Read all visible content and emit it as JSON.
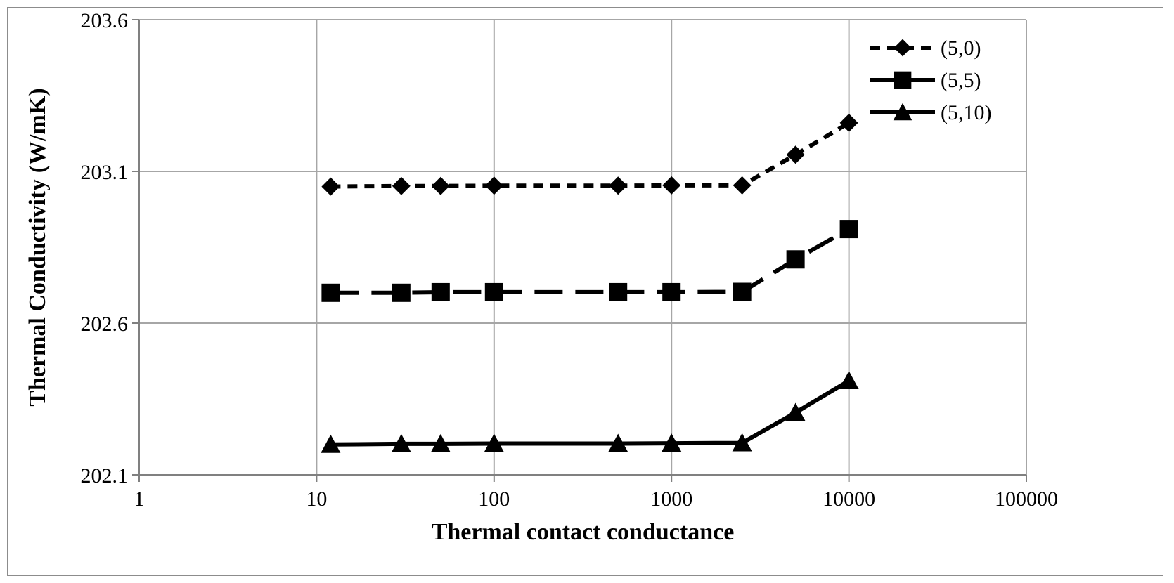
{
  "chart_data": {
    "type": "line",
    "title": "",
    "xlabel": "Thermal contact conductance",
    "ylabel": "Thermal Conductivity (W/mK)",
    "xscale": "log",
    "xlim": [
      1,
      100000
    ],
    "ylim": [
      202.1,
      203.6
    ],
    "xticks": [
      "1",
      "10",
      "100",
      "1000",
      "10000",
      "100000"
    ],
    "yticks": [
      "202.1",
      "202.6",
      "203.1",
      "203.6"
    ],
    "grid": true,
    "legend_position": "top-right",
    "x": [
      12,
      30,
      50,
      100,
      500,
      1000,
      2500,
      5000,
      10000
    ],
    "series": [
      {
        "name": "(5,0)",
        "marker": "diamond",
        "line_style": "dotted",
        "color": "#000000",
        "values": [
          203.05,
          203.052,
          203.052,
          203.053,
          203.053,
          203.054,
          203.054,
          203.155,
          203.26
        ]
      },
      {
        "name": "(5,5)",
        "marker": "square",
        "line_style": "dashed",
        "color": "#000000",
        "values": [
          202.7,
          202.7,
          202.702,
          202.702,
          202.702,
          202.702,
          202.703,
          202.81,
          202.91
        ]
      },
      {
        "name": "(5,10)",
        "marker": "triangle",
        "line_style": "solid",
        "color": "#000000",
        "values": [
          202.2,
          202.202,
          202.202,
          202.203,
          202.203,
          202.204,
          202.205,
          202.305,
          202.41
        ]
      }
    ]
  }
}
